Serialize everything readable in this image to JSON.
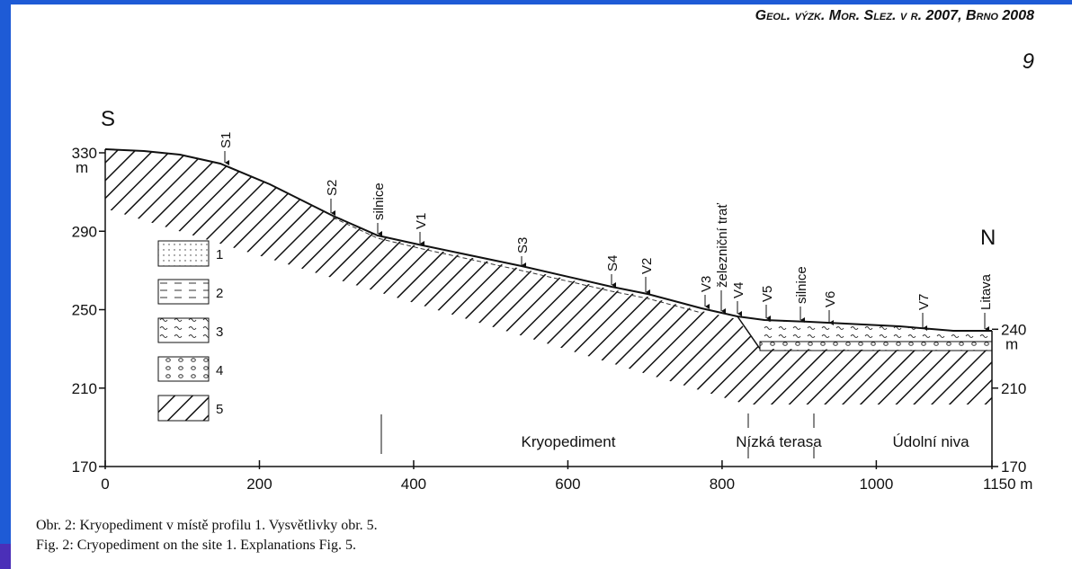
{
  "header": {
    "journal": "Geol. výzk. Mor. Slez. v r. 2007, Brno 2008",
    "page": "9"
  },
  "figure": {
    "direction_left": "S",
    "direction_right": "N",
    "xlim": [
      0,
      1150
    ],
    "xticks": [
      0,
      200,
      400,
      600,
      800,
      1000,
      {
        "value": 1150,
        "label": "1150 m"
      }
    ],
    "ylim": [
      170,
      330
    ],
    "yticks": [
      170,
      210,
      250,
      290,
      330
    ],
    "y_unit": "m",
    "y2ticks": [
      170,
      210,
      240
    ],
    "y2_unit": "m",
    "points": [
      "S1",
      "S2",
      "silnice",
      "V1",
      "S3",
      "S4",
      "V2",
      "V3",
      "železniční trať",
      "V4",
      "V5",
      "silnice",
      "V6",
      "V7",
      "Litava"
    ],
    "legend": [
      "1",
      "2",
      "3",
      "4",
      "5"
    ],
    "zones": [
      "Kryopediment",
      "Nízká terasa",
      "Údolní niva"
    ]
  },
  "caption": [
    "Obr. 2: Kryopediment v místě profilu 1. Vysvětlivky obr. 5.",
    "Fig. 2: Cryopediment on the site 1. Explanations Fig. 5."
  ]
}
